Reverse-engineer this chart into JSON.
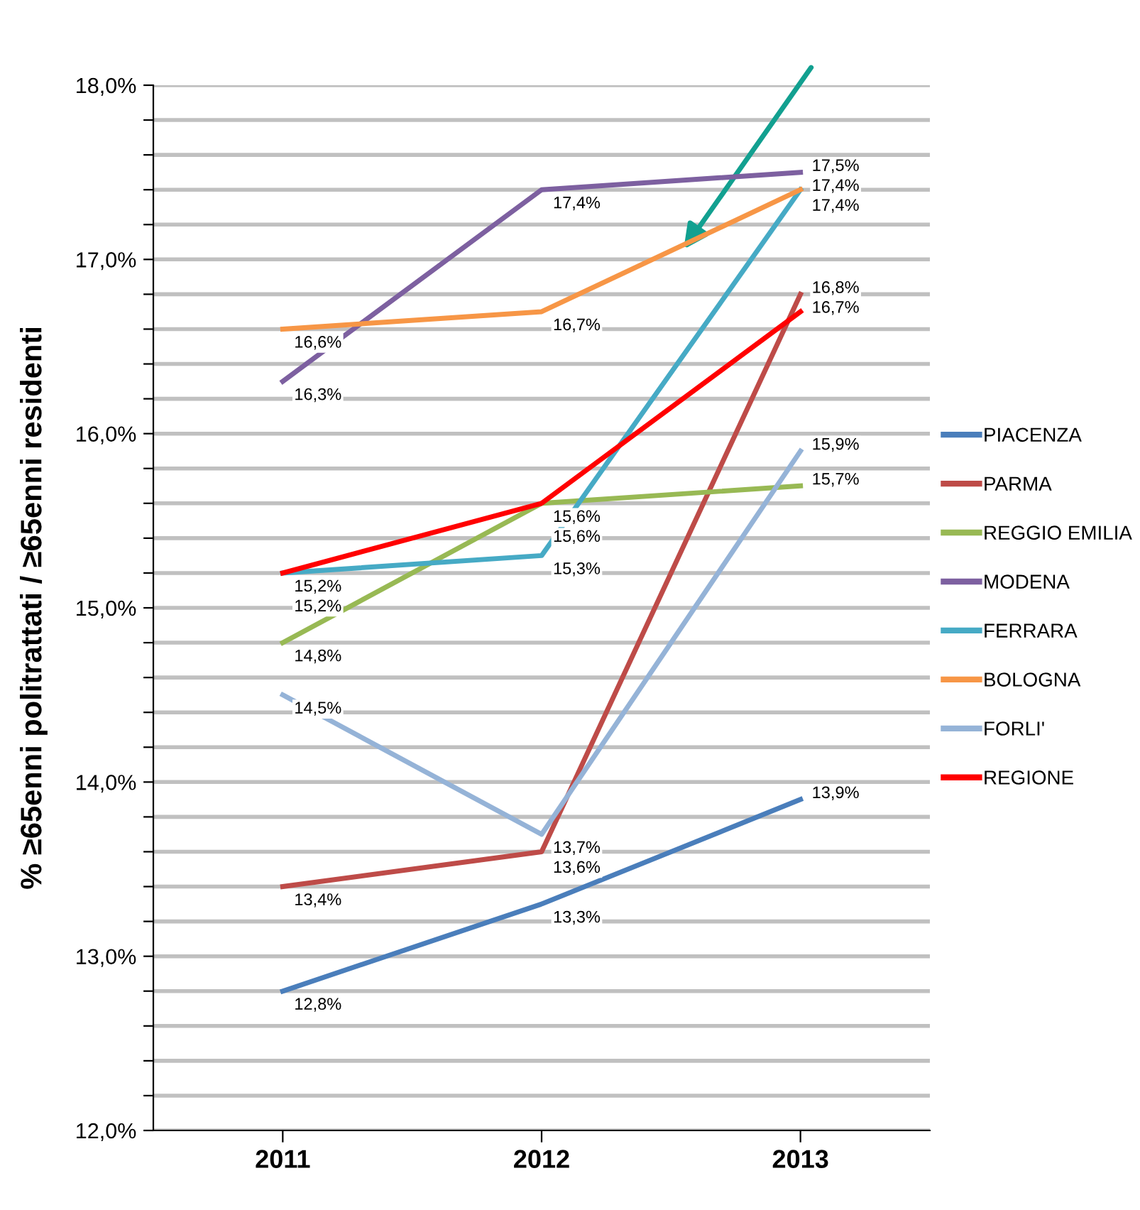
{
  "chart_data": {
    "type": "line",
    "ylabel": "% ≥65enni politrattati / ≥65enni residenti",
    "categories": [
      "2011",
      "2012",
      "2013"
    ],
    "ylim": [
      12.0,
      18.0
    ],
    "yticks": [
      {
        "value": 12.0,
        "label": "12,0%"
      },
      {
        "value": 12.2,
        "label": null
      },
      {
        "value": 12.4,
        "label": null
      },
      {
        "value": 12.6,
        "label": null
      },
      {
        "value": 12.8,
        "label": null
      },
      {
        "value": 13.0,
        "label": "13,0%"
      },
      {
        "value": 13.2,
        "label": null
      },
      {
        "value": 13.4,
        "label": null
      },
      {
        "value": 13.6,
        "label": null
      },
      {
        "value": 13.8,
        "label": null
      },
      {
        "value": 14.0,
        "label": "14,0%"
      },
      {
        "value": 14.2,
        "label": null
      },
      {
        "value": 14.4,
        "label": null
      },
      {
        "value": 14.6,
        "label": null
      },
      {
        "value": 14.8,
        "label": null
      },
      {
        "value": 15.0,
        "label": "15,0%"
      },
      {
        "value": 15.2,
        "label": null
      },
      {
        "value": 15.4,
        "label": null
      },
      {
        "value": 15.6,
        "label": null
      },
      {
        "value": 15.8,
        "label": null
      },
      {
        "value": 16.0,
        "label": "16,0%"
      },
      {
        "value": 16.2,
        "label": null
      },
      {
        "value": 16.4,
        "label": null
      },
      {
        "value": 16.6,
        "label": null
      },
      {
        "value": 16.8,
        "label": null
      },
      {
        "value": 17.0,
        "label": "17,0%"
      },
      {
        "value": 17.2,
        "label": null
      },
      {
        "value": 17.4,
        "label": null
      },
      {
        "value": 17.6,
        "label": null
      },
      {
        "value": 17.8,
        "label": null
      },
      {
        "value": 18.0,
        "label": "18,0%"
      }
    ],
    "grid": "y",
    "legend": "right",
    "marker": "none",
    "line_style": "solid",
    "series": [
      {
        "name": "PIACENZA",
        "color": "#4a7ebb",
        "values": [
          12.8,
          13.3,
          13.9
        ],
        "value_labels": [
          "12,8%",
          "13,3%",
          "13,9%"
        ]
      },
      {
        "name": "PARMA",
        "color": "#be4b48",
        "values": [
          13.4,
          13.6,
          16.8
        ],
        "value_labels": [
          "13,4%",
          "13,6%",
          "16,8%"
        ]
      },
      {
        "name": "REGGIO EMILIA",
        "color": "#98b954",
        "values": [
          14.8,
          15.6,
          15.7
        ],
        "value_labels": [
          "14,8%",
          "15,6%",
          "15,7%"
        ]
      },
      {
        "name": "MODENA",
        "color": "#7d60a0",
        "values": [
          16.3,
          17.4,
          17.5
        ],
        "value_labels": [
          "16,3%",
          "17,4%",
          "17,5%"
        ]
      },
      {
        "name": "FERRARA",
        "color": "#46aac5",
        "values": [
          15.2,
          15.3,
          17.4
        ],
        "value_labels": [
          "15,2%",
          "15,3%",
          "17,4%"
        ]
      },
      {
        "name": "BOLOGNA",
        "color": "#f79646",
        "values": [
          16.6,
          16.7,
          17.4
        ],
        "value_labels": [
          "16,6%",
          "16,7%",
          "17,4%"
        ]
      },
      {
        "name": "FORLI'",
        "color": "#95b3d7",
        "values": [
          14.5,
          13.7,
          15.9
        ],
        "value_labels": [
          "14,5%",
          "13,7%",
          "15,9%"
        ]
      },
      {
        "name": "REGIONE",
        "color": "#ff0000",
        "values": [
          15.2,
          15.6,
          16.7
        ],
        "value_labels": [
          "15,2%",
          "15,6%",
          "16,7%"
        ]
      }
    ]
  }
}
